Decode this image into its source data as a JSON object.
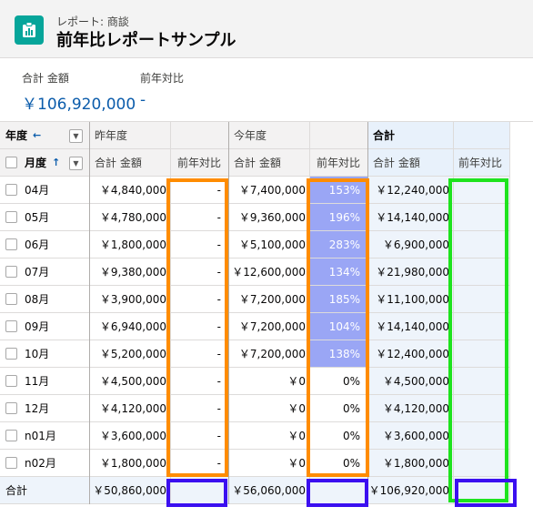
{
  "header": {
    "subtitle": "レポート: 商談",
    "title": "前年比レポートサンプル"
  },
  "summary": [
    {
      "label": "合計 金額",
      "value": "￥106,920,000"
    },
    {
      "label": "前年対比",
      "value": "-"
    }
  ],
  "table": {
    "row_group_label": "年度",
    "row_group_arrow": "←",
    "sub_group_label": "月度",
    "sub_group_arrow": "↑",
    "col_groups": [
      "昨年度",
      "今年度",
      "合計"
    ],
    "measure_amount": "合計 金額",
    "measure_ratio": "前年対比",
    "rows": [
      {
        "month": "04月",
        "prev": "￥4,840,000",
        "prev_ratio": "-",
        "curr": "￥7,400,000",
        "curr_ratio": "153%",
        "curr_ratio_value": 1.53,
        "total": "￥12,240,000",
        "total_ratio": ""
      },
      {
        "month": "05月",
        "prev": "￥4,780,000",
        "prev_ratio": "-",
        "curr": "￥9,360,000",
        "curr_ratio": "196%",
        "curr_ratio_value": 1.96,
        "total": "￥14,140,000",
        "total_ratio": ""
      },
      {
        "month": "06月",
        "prev": "￥1,800,000",
        "prev_ratio": "-",
        "curr": "￥5,100,000",
        "curr_ratio": "283%",
        "curr_ratio_value": 2.83,
        "total": "￥6,900,000",
        "total_ratio": ""
      },
      {
        "month": "07月",
        "prev": "￥9,380,000",
        "prev_ratio": "-",
        "curr": "￥12,600,000",
        "curr_ratio": "134%",
        "curr_ratio_value": 1.34,
        "total": "￥21,980,000",
        "total_ratio": ""
      },
      {
        "month": "08月",
        "prev": "￥3,900,000",
        "prev_ratio": "-",
        "curr": "￥7,200,000",
        "curr_ratio": "185%",
        "curr_ratio_value": 1.85,
        "total": "￥11,100,000",
        "total_ratio": ""
      },
      {
        "month": "09月",
        "prev": "￥6,940,000",
        "prev_ratio": "-",
        "curr": "￥7,200,000",
        "curr_ratio": "104%",
        "curr_ratio_value": 1.04,
        "total": "￥14,140,000",
        "total_ratio": ""
      },
      {
        "month": "10月",
        "prev": "￥5,200,000",
        "prev_ratio": "-",
        "curr": "￥7,200,000",
        "curr_ratio": "138%",
        "curr_ratio_value": 1.38,
        "total": "￥12,400,000",
        "total_ratio": ""
      },
      {
        "month": "11月",
        "prev": "￥4,500,000",
        "prev_ratio": "-",
        "curr": "￥0",
        "curr_ratio": "0%",
        "curr_ratio_value": 0,
        "total": "￥4,500,000",
        "total_ratio": ""
      },
      {
        "month": "12月",
        "prev": "￥4,120,000",
        "prev_ratio": "-",
        "curr": "￥0",
        "curr_ratio": "0%",
        "curr_ratio_value": 0,
        "total": "￥4,120,000",
        "total_ratio": ""
      },
      {
        "month": "n01月",
        "prev": "￥3,600,000",
        "prev_ratio": "-",
        "curr": "￥0",
        "curr_ratio": "0%",
        "curr_ratio_value": 0,
        "total": "￥3,600,000",
        "total_ratio": ""
      },
      {
        "month": "n02月",
        "prev": "￥1,800,000",
        "prev_ratio": "-",
        "curr": "￥0",
        "curr_ratio": "0%",
        "curr_ratio_value": 0,
        "total": "￥1,800,000",
        "total_ratio": ""
      }
    ],
    "total_row": {
      "label": "合計",
      "prev": "￥50,860,000",
      "prev_ratio": "",
      "curr": "￥56,060,000",
      "curr_ratio": "",
      "total": "￥106,920,000",
      "total_ratio": ""
    }
  },
  "colors": {
    "accent": "#0b5cab",
    "icon_bg": "#06a59a",
    "ratio_fill": "#9aa6f5",
    "highlight_orange": "#ff8c00",
    "highlight_green": "#1ee31e",
    "highlight_blue": "#3b0ff0"
  }
}
